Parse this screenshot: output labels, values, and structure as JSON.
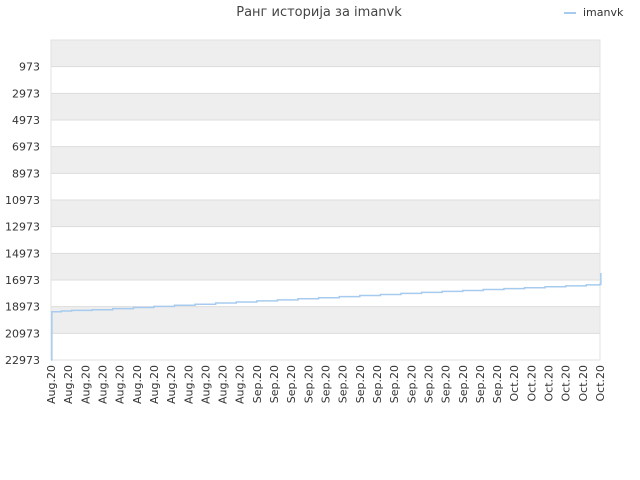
{
  "chart_data": {
    "type": "line",
    "title": "Ранг историја за imanvk",
    "legend": {
      "position": "top-right",
      "entries": [
        "imanvk"
      ]
    },
    "y_axis": {
      "reversed": true,
      "ylim": [
        22973,
        973
      ],
      "ticks": [
        973,
        2973,
        4973,
        6973,
        8973,
        10973,
        12973,
        14973,
        16973,
        18973,
        20973,
        22973
      ]
    },
    "x_axis": {
      "tick_labels": [
        "Aug.20",
        "Aug.20",
        "Aug.20",
        "Aug.20",
        "Aug.20",
        "Aug.20",
        "Aug.20",
        "Aug.20",
        "Aug.20",
        "Aug.20",
        "Aug.20",
        "Aug.20",
        "Sep.20",
        "Sep.20",
        "Sep.20",
        "Sep.20",
        "Sep.20",
        "Sep.20",
        "Sep.20",
        "Sep.20",
        "Sep.20",
        "Sep.20",
        "Sep.20",
        "Sep.20",
        "Sep.20",
        "Sep.20",
        "Sep.20",
        "Oct.20",
        "Oct.20",
        "Oct.20",
        "Oct.20",
        "Oct.20",
        "Oct.20"
      ]
    },
    "grid": true,
    "band_colors": [
      "#eeeeee",
      "#ffffff"
    ],
    "series": [
      {
        "name": "imanvk",
        "color": "#a7cbef",
        "points": [
          [
            0,
            22973
          ],
          [
            0.05,
            19350
          ],
          [
            0.6,
            19300
          ],
          [
            1.2,
            19250
          ],
          [
            2.4,
            19200
          ],
          [
            3.6,
            19120
          ],
          [
            4.8,
            19040
          ],
          [
            6.0,
            18950
          ],
          [
            7.2,
            18870
          ],
          [
            8.4,
            18790
          ],
          [
            9.6,
            18700
          ],
          [
            10.8,
            18620
          ],
          [
            12.0,
            18540
          ],
          [
            13.2,
            18460
          ],
          [
            14.4,
            18380
          ],
          [
            15.6,
            18300
          ],
          [
            16.8,
            18220
          ],
          [
            18.0,
            18140
          ],
          [
            19.2,
            18060
          ],
          [
            20.4,
            17980
          ],
          [
            21.6,
            17900
          ],
          [
            22.8,
            17830
          ],
          [
            24.0,
            17760
          ],
          [
            25.2,
            17690
          ],
          [
            26.4,
            17620
          ],
          [
            27.6,
            17550
          ],
          [
            28.8,
            17480
          ],
          [
            30.0,
            17410
          ],
          [
            31.2,
            17340
          ],
          [
            32.0,
            17280
          ],
          [
            32.05,
            16450
          ]
        ]
      }
    ]
  }
}
